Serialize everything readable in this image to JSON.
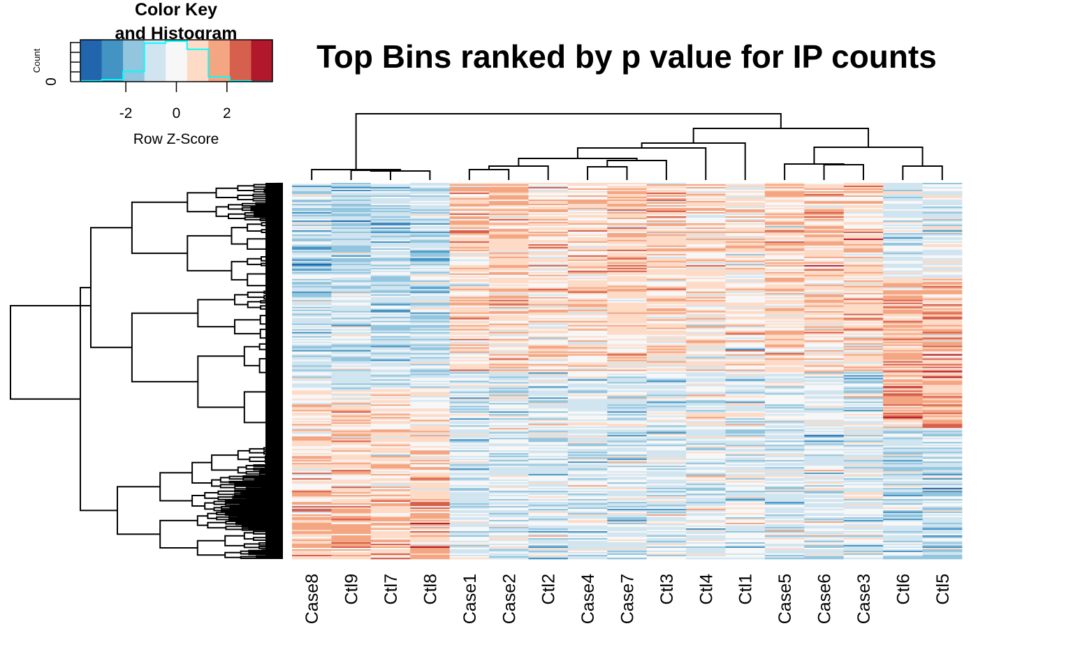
{
  "chart_data": {
    "type": "heatmap",
    "title": "Top Bins ranked by p value for IP counts",
    "columns": [
      "Case8",
      "Ctl9",
      "Ctl7",
      "Ctl8",
      "Case1",
      "Case2",
      "Ctl2",
      "Case4",
      "Case7",
      "Ctl3",
      "Ctl4",
      "Ctl1",
      "Case5",
      "Case6",
      "Case3",
      "Ctl6",
      "Ctl5"
    ],
    "row_dendrogram": true,
    "column_dendrogram": true,
    "color_key": {
      "title_line1": "Color Key",
      "title_line2": "and Histogram",
      "xlabel": "Row Z-Score",
      "ylabel": "Count",
      "y_tick": "0",
      "x_ticks": [
        "-2",
        "0",
        "2"
      ],
      "x_tick_values": [
        -2,
        0,
        2
      ],
      "range": [
        -3.8,
        3.8
      ],
      "colors": [
        "#2166ac",
        "#4393c3",
        "#92c5de",
        "#d1e5f0",
        "#f7f7f7",
        "#fddbc7",
        "#f4a582",
        "#d6604d",
        "#b2182b"
      ],
      "histogram": [
        0.02,
        0.05,
        0.25,
        0.95,
        1.0,
        0.8,
        0.12,
        0.02,
        0.0
      ],
      "histogram_color": "#00ffff"
    },
    "column_block_tendency": [
      {
        "columns": [
          "Case8",
          "Ctl9",
          "Ctl7",
          "Ctl8"
        ],
        "pattern": "blue top, orange bottom"
      },
      {
        "columns": [
          "Case1",
          "Case2",
          "Ctl2",
          "Case4",
          "Case7",
          "Ctl3",
          "Ctl4",
          "Ctl1",
          "Case5",
          "Case6",
          "Case3"
        ],
        "pattern": "orange top, blue bottom"
      },
      {
        "columns": [
          "Ctl6",
          "Ctl5"
        ],
        "pattern": "blue top, orange middle, blue bottom"
      }
    ]
  }
}
